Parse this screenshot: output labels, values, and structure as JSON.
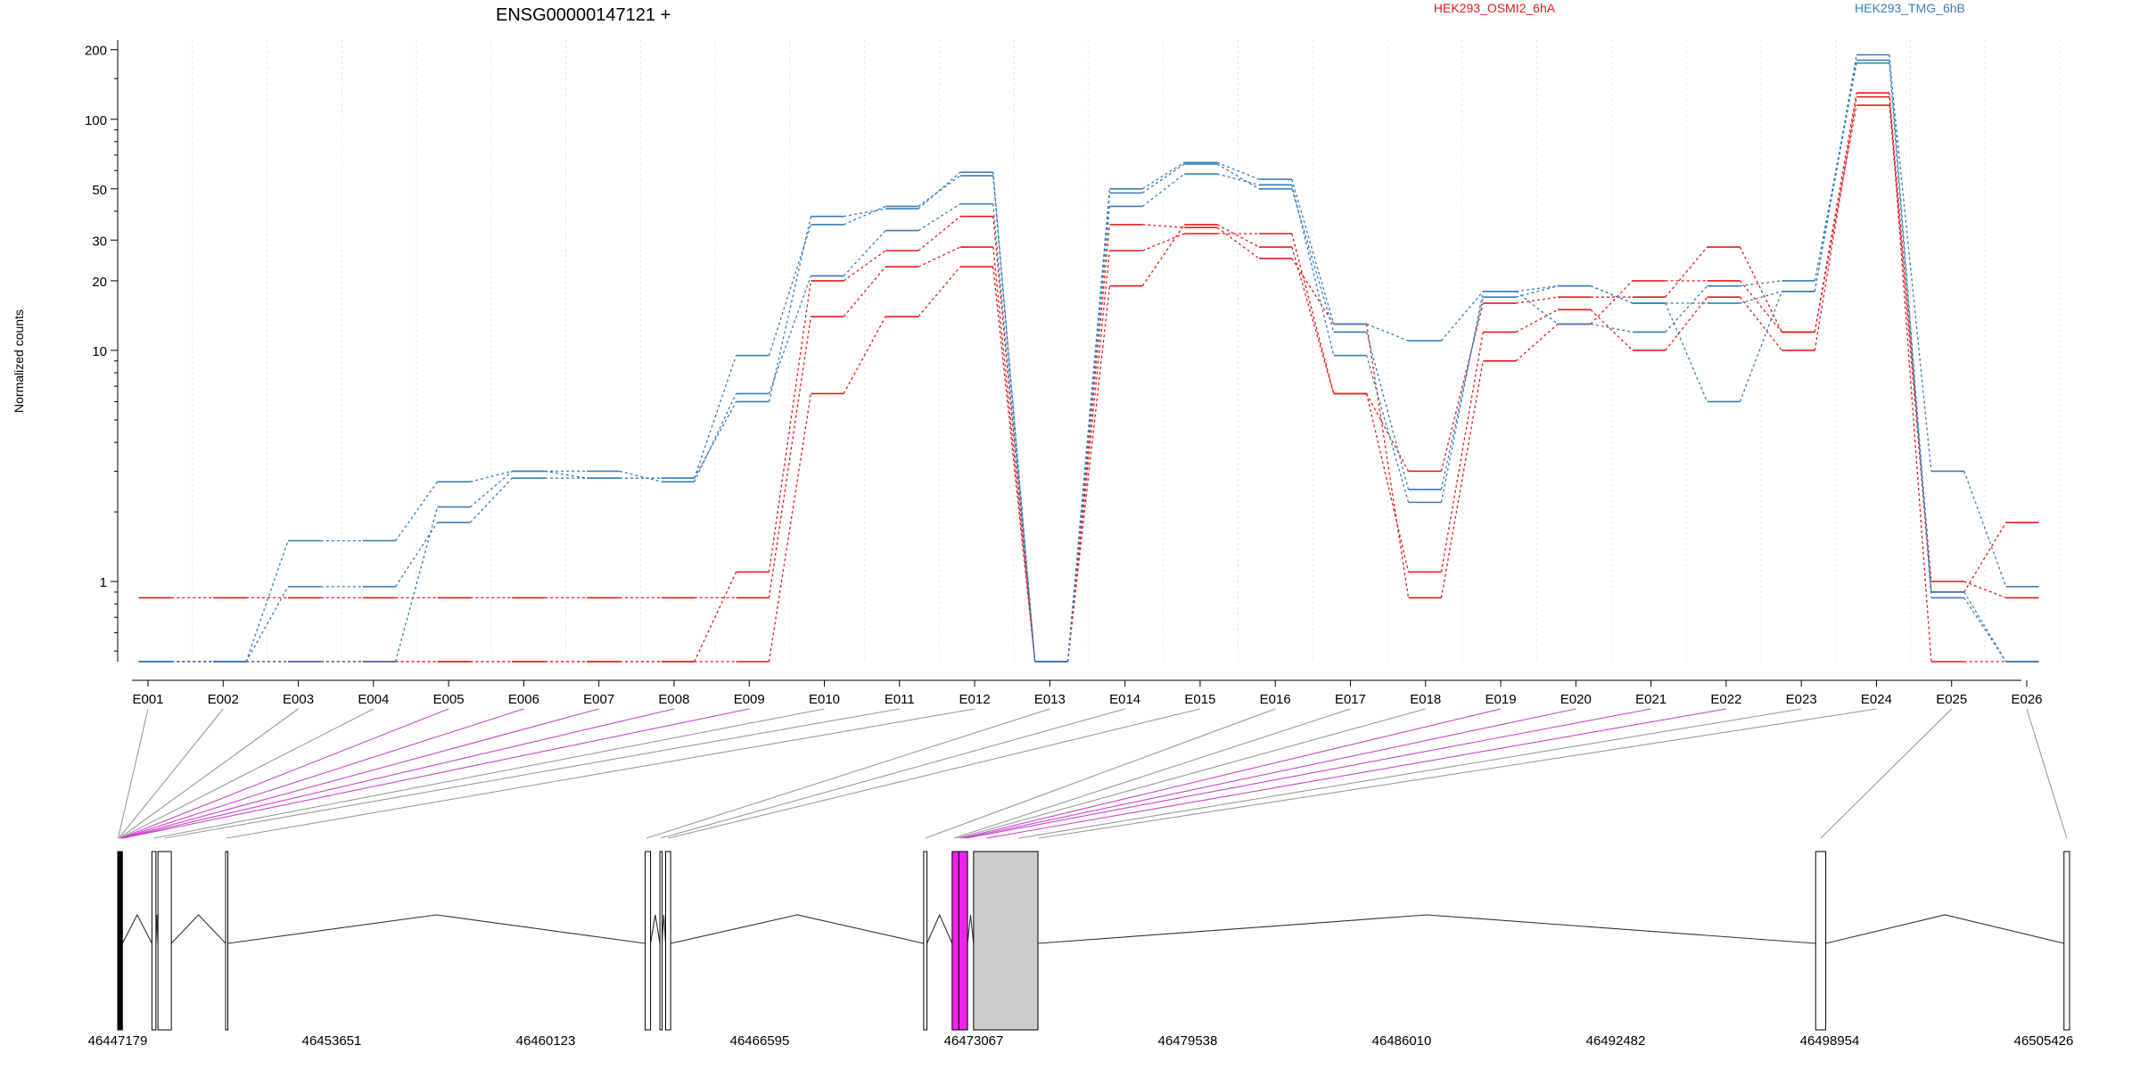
{
  "chart_data": {
    "type": "line",
    "title": "ENSG00000147121 +",
    "ylabel": "Normalized counts",
    "yscale": "log",
    "ylim": [
      0.45,
      220
    ],
    "grid": true,
    "legend_placement": "top-right",
    "yticks": [
      {
        "value": 1,
        "label": "1"
      },
      {
        "value": 10,
        "label": "10"
      },
      {
        "value": 20,
        "label": "20"
      },
      {
        "value": 30,
        "label": "30"
      },
      {
        "value": 50,
        "label": "50"
      },
      {
        "value": 100,
        "label": "100"
      },
      {
        "value": 200,
        "label": "200"
      }
    ],
    "categories": [
      "E001",
      "E002",
      "E003",
      "E004",
      "E005",
      "E006",
      "E007",
      "E008",
      "E009",
      "E010",
      "E011",
      "E012",
      "E013",
      "E014",
      "E015",
      "E016",
      "E017",
      "E018",
      "E019",
      "E020",
      "E021",
      "E022",
      "E023",
      "E024",
      "E025",
      "E026"
    ],
    "groups": [
      {
        "name": "HEK293_OSMI2_6hA",
        "color": "#e41a1c"
      },
      {
        "name": "HEK293_TMG_6hB",
        "color": "#377eb8"
      }
    ],
    "series": [
      {
        "group": 0,
        "values": [
          0.85,
          0.85,
          0.85,
          0.85,
          0.85,
          0.85,
          0.85,
          0.85,
          0.85,
          14,
          23,
          28,
          0.45,
          35,
          34,
          25,
          13,
          0.85,
          9,
          13,
          20,
          20,
          12,
          115,
          0.9,
          1.8
        ]
      },
      {
        "group": 0,
        "values": [
          0.45,
          0.45,
          0.45,
          0.45,
          0.45,
          0.45,
          0.45,
          0.45,
          0.45,
          6.5,
          14,
          23,
          0.45,
          19,
          35,
          28,
          6.5,
          1.1,
          12,
          15,
          10,
          17,
          10,
          125,
          1,
          0.85
        ]
      },
      {
        "group": 0,
        "values": [
          0.45,
          0.45,
          0.45,
          0.45,
          0.45,
          0.45,
          0.45,
          0.45,
          1.1,
          20,
          27,
          38,
          0.45,
          27,
          32,
          32,
          6.5,
          3,
          16,
          17,
          17,
          28,
          12,
          130,
          0.45,
          0.45
        ]
      },
      {
        "group": 1,
        "values": [
          0.45,
          0.45,
          0.95,
          0.95,
          1.8,
          2.8,
          2.8,
          2.8,
          9.5,
          35,
          42,
          57,
          0.45,
          50,
          65,
          55,
          13,
          11,
          18,
          19,
          16,
          6,
          18,
          180,
          3,
          0.95
        ]
      },
      {
        "group": 1,
        "values": [
          0.45,
          0.45,
          1.5,
          1.5,
          2.7,
          3,
          2.8,
          2.8,
          6,
          38,
          41,
          59,
          0.45,
          48,
          64,
          50,
          12,
          2.5,
          17,
          19,
          16,
          16,
          18,
          190,
          0.9,
          0.45
        ]
      },
      {
        "group": 1,
        "values": [
          0.45,
          0.45,
          0.45,
          0.45,
          2.1,
          3,
          3,
          2.7,
          6.5,
          21,
          33,
          43,
          0.45,
          42,
          58,
          52,
          9.5,
          2.2,
          18,
          13,
          12,
          19,
          20,
          175,
          0.85,
          0.45
        ]
      }
    ],
    "gene_model": {
      "coord_labels": [
        "46447179",
        "46453651",
        "46460123",
        "46466595",
        "46473067",
        "46479538",
        "46486010",
        "46492482",
        "46498954",
        "46505426"
      ],
      "coord_range": [
        46447179,
        46505426
      ],
      "highlight_color": "#ee22ee",
      "utr_color": "#cccccc",
      "exon_blocks": [
        {
          "start": 46447179,
          "end": 46447320,
          "fill": "#000000"
        },
        {
          "start": 46448200,
          "end": 46448320,
          "fill": "#ffffff"
        },
        {
          "start": 46448380,
          "end": 46448780,
          "fill": "#ffffff"
        },
        {
          "start": 46450400,
          "end": 46450460,
          "fill": "#ffffff"
        },
        {
          "start": 46462920,
          "end": 46463080,
          "fill": "#ffffff"
        },
        {
          "start": 46463360,
          "end": 46463420,
          "fill": "#ffffff"
        },
        {
          "start": 46463530,
          "end": 46463680,
          "fill": "#ffffff"
        },
        {
          "start": 46471230,
          "end": 46471330,
          "fill": "#ffffff"
        },
        {
          "start": 46472080,
          "end": 46472280,
          "fill": "#ee22ee"
        },
        {
          "start": 46472280,
          "end": 46472540,
          "fill": "#ee22ee"
        },
        {
          "start": 46472720,
          "end": 46474640,
          "fill": "#cccccc"
        },
        {
          "start": 46497850,
          "end": 46498150,
          "fill": "#ffffff"
        },
        {
          "start": 46505260,
          "end": 46505426,
          "fill": "#ffffff"
        }
      ],
      "exon_map": [
        {
          "exon": "E001",
          "start": 46447179,
          "end": 46447205,
          "highlight": false
        },
        {
          "exon": "E002",
          "start": 46447205,
          "end": 46447225,
          "highlight": false
        },
        {
          "exon": "E003",
          "start": 46447225,
          "end": 46447245,
          "highlight": false
        },
        {
          "exon": "E004",
          "start": 46447245,
          "end": 46447265,
          "highlight": false
        },
        {
          "exon": "E005",
          "start": 46447265,
          "end": 46447285,
          "highlight": true
        },
        {
          "exon": "E006",
          "start": 46447285,
          "end": 46447300,
          "highlight": true
        },
        {
          "exon": "E007",
          "start": 46447300,
          "end": 46447320,
          "highlight": true
        },
        {
          "exon": "E008",
          "start": 46447320,
          "end": 46447335,
          "highlight": true
        },
        {
          "exon": "E009",
          "start": 46447335,
          "end": 46447350,
          "highlight": true
        },
        {
          "exon": "E010",
          "start": 46448200,
          "end": 46448320,
          "highlight": false
        },
        {
          "exon": "E011",
          "start": 46448380,
          "end": 46448780,
          "highlight": false
        },
        {
          "exon": "E012",
          "start": 46450400,
          "end": 46450460,
          "highlight": false
        },
        {
          "exon": "E013",
          "start": 46462920,
          "end": 46463000,
          "highlight": false
        },
        {
          "exon": "E014",
          "start": 46463360,
          "end": 46463420,
          "highlight": false
        },
        {
          "exon": "E015",
          "start": 46463530,
          "end": 46463680,
          "highlight": false
        },
        {
          "exon": "E016",
          "start": 46471230,
          "end": 46471330,
          "highlight": false
        },
        {
          "exon": "E017",
          "start": 46472080,
          "end": 46472180,
          "highlight": false
        },
        {
          "exon": "E018",
          "start": 46472180,
          "end": 46472280,
          "highlight": false
        },
        {
          "exon": "E019",
          "start": 46472280,
          "end": 46472380,
          "highlight": true
        },
        {
          "exon": "E020",
          "start": 46472380,
          "end": 46472460,
          "highlight": true
        },
        {
          "exon": "E021",
          "start": 46472460,
          "end": 46472540,
          "highlight": true
        },
        {
          "exon": "E022",
          "start": 46472720,
          "end": 46473500,
          "highlight": true
        },
        {
          "exon": "E023",
          "start": 46473500,
          "end": 46474640,
          "highlight": false
        },
        {
          "exon": "E024",
          "start": 46474640,
          "end": 46474700,
          "highlight": false
        },
        {
          "exon": "E025",
          "start": 46497850,
          "end": 46498150,
          "highlight": false
        },
        {
          "exon": "E026",
          "start": 46505260,
          "end": 46505426,
          "highlight": false
        }
      ]
    }
  }
}
